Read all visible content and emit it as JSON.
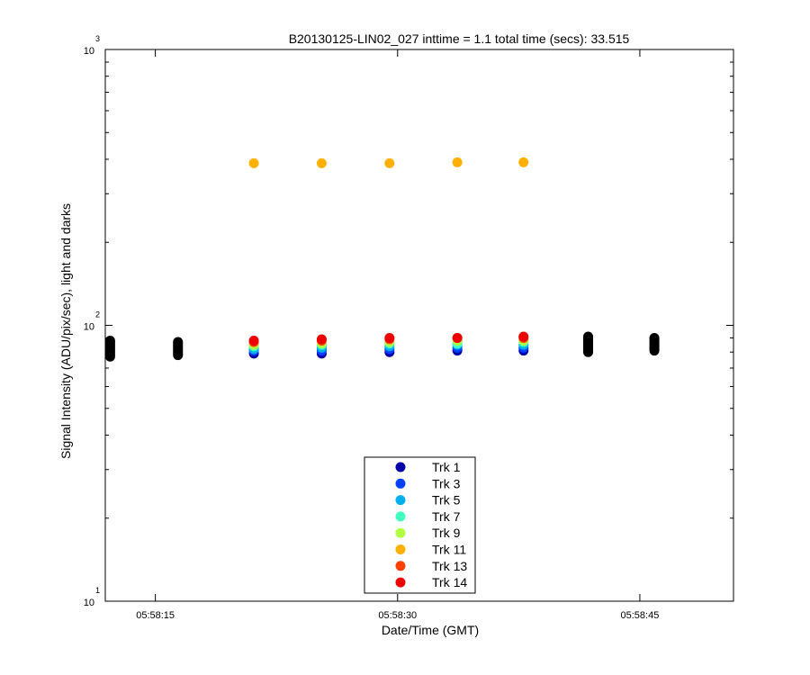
{
  "chart_data": {
    "type": "scatter",
    "title": "B20130125-LIN02_027 inttime = 1.1 total time (secs): 33.515",
    "xlabel": "Date/Time (GMT)",
    "ylabel": "Signal Intensity (ADU/pix/sec), light and darks",
    "yscale": "log",
    "ylim": [
      10,
      1000
    ],
    "xlim": [
      "05:58:11.9",
      "05:58:50.8"
    ],
    "xticks": [
      "05:58:15",
      "05:58:30",
      "05:58:45"
    ],
    "yticks": [
      {
        "base": "10",
        "exp": "1",
        "value": 10
      },
      {
        "base": "10",
        "exp": "2",
        "value": 100
      },
      {
        "base": "10",
        "exp": "3",
        "value": 1000
      }
    ],
    "grid": false,
    "legend_position": "lower-center",
    "dark_color": "#000000",
    "light_times": [
      "05:58:21.1",
      "05:58:25.3",
      "05:58:29.5",
      "05:58:33.7",
      "05:58:37.8"
    ],
    "series": [
      {
        "name": "Trk 1",
        "color": "#0000aa",
        "values": [
          79,
          79,
          80,
          81,
          81
        ]
      },
      {
        "name": "Trk 3",
        "color": "#0040ff",
        "values": [
          81,
          81,
          82,
          83,
          83
        ]
      },
      {
        "name": "Trk 5",
        "color": "#00b0ee",
        "values": [
          82,
          83,
          84,
          85,
          85
        ]
      },
      {
        "name": "Trk 7",
        "color": "#40ffc0",
        "values": [
          84,
          85,
          86,
          86,
          87
        ]
      },
      {
        "name": "Trk 9",
        "color": "#b0ff40",
        "values": [
          85,
          86,
          87,
          88,
          88
        ]
      },
      {
        "name": "Trk 11",
        "color": "#ffb000",
        "values": [
          387,
          387,
          387,
          390,
          390
        ]
      },
      {
        "name": "Trk 13",
        "color": "#ff4000",
        "values": [
          87,
          88,
          89,
          90,
          90
        ]
      },
      {
        "name": "Trk 14",
        "color": "#ee0000",
        "values": [
          88,
          89,
          90,
          90,
          91
        ]
      }
    ],
    "darks": [
      {
        "time": "05:58:12.2",
        "min": 77,
        "max": 88
      },
      {
        "time": "05:58:16.4",
        "min": 78,
        "max": 87
      },
      {
        "time": "05:58:41.8",
        "min": 80,
        "max": 91
      },
      {
        "time": "05:58:45.9",
        "min": 81,
        "max": 90
      }
    ]
  }
}
